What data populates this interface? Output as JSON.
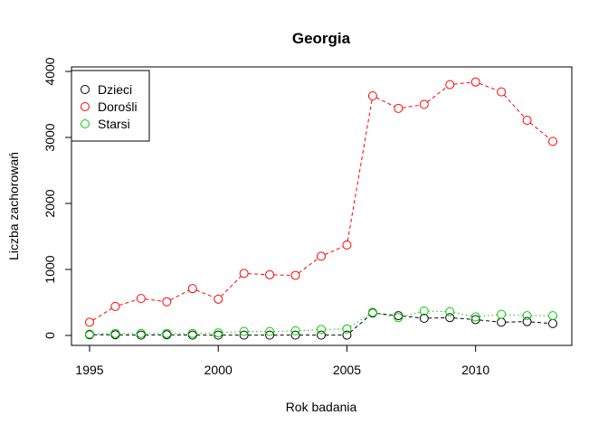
{
  "chart_data": {
    "type": "line",
    "title": "Georgia",
    "xlabel": "Rok badania",
    "ylabel": "Liczba zachorowań",
    "x": [
      1995,
      1996,
      1997,
      1998,
      1999,
      2000,
      2001,
      2002,
      2003,
      2004,
      2005,
      2006,
      2007,
      2008,
      2009,
      2010,
      2011,
      2012,
      2013
    ],
    "xlim": [
      1995,
      2013
    ],
    "ylim": [
      0,
      4000
    ],
    "x_ticks": [
      "1995",
      "2000",
      "2005",
      "2010"
    ],
    "y_ticks": [
      "0",
      "1000",
      "2000",
      "3000",
      "4000"
    ],
    "grid": false,
    "legend_position": "top-left",
    "series": [
      {
        "name": "Dzieci",
        "color": "#000000",
        "line_style": "dashed",
        "values": [
          10,
          10,
          5,
          10,
          5,
          5,
          5,
          5,
          5,
          5,
          5,
          340,
          300,
          260,
          270,
          240,
          200,
          210,
          180
        ]
      },
      {
        "name": "Dorośli",
        "color": "#ff0000",
        "line_style": "dashed",
        "values": [
          200,
          440,
          560,
          510,
          710,
          550,
          940,
          920,
          910,
          1200,
          1370,
          3630,
          3440,
          3500,
          3800,
          3840,
          3690,
          3260,
          2940
        ]
      },
      {
        "name": "Starsi",
        "color": "#00cd00",
        "line_style": "dotted",
        "values": [
          20,
          30,
          30,
          30,
          30,
          40,
          60,
          60,
          70,
          90,
          100,
          350,
          270,
          370,
          360,
          280,
          320,
          300,
          300
        ]
      }
    ]
  }
}
